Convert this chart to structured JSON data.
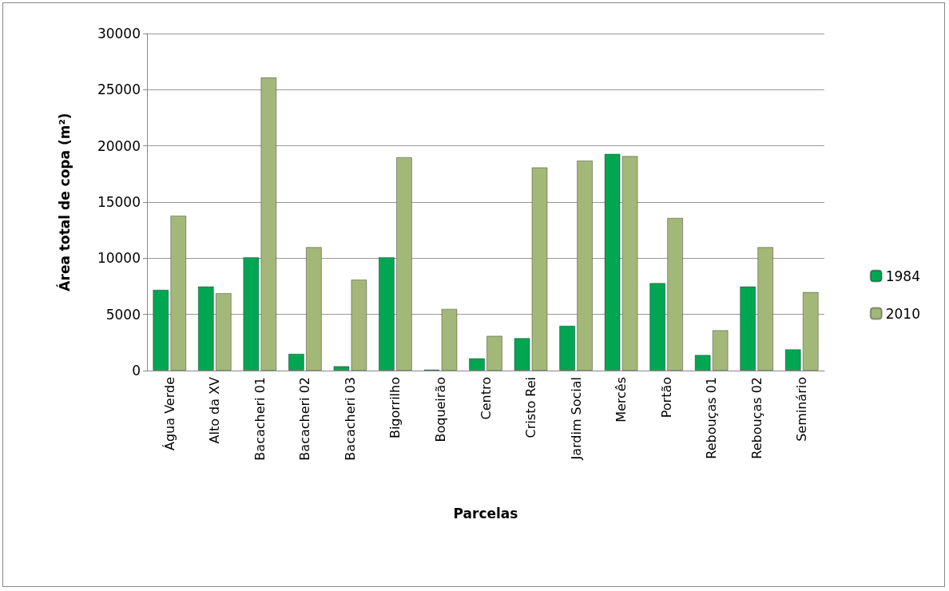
{
  "chart_data": {
    "type": "bar",
    "xlabel": "Parcelas",
    "ylabel": "Área total de copa (m²)",
    "categories": [
      "Água Verde",
      "Alto da XV",
      "Bacacheri 01",
      "Bacacheri 02",
      "Bacacheri 03",
      "Bigorrilho",
      "Boqueirão",
      "Centro",
      "Cristo Rei",
      "Jardim Social",
      "Mercês",
      "Portão",
      "Rebouças 01",
      "Rebouças 02",
      "Seminário"
    ],
    "series": [
      {
        "name": "1984",
        "color": "#00a651",
        "values": [
          7200,
          7500,
          10100,
          1500,
          400,
          10100,
          100,
          1100,
          2900,
          4000,
          19300,
          7800,
          1400,
          7500,
          1900
        ]
      },
      {
        "name": "2010",
        "color": "#a3b878",
        "values": [
          13800,
          6900,
          26100,
          11000,
          8100,
          19000,
          5500,
          3100,
          18100,
          18700,
          19100,
          13600,
          3600,
          11000,
          7000
        ]
      }
    ],
    "ylim": [
      0,
      30000
    ],
    "yticks": [
      0,
      5000,
      10000,
      15000,
      20000,
      25000,
      30000
    ],
    "grid": "y",
    "legend": "right"
  }
}
